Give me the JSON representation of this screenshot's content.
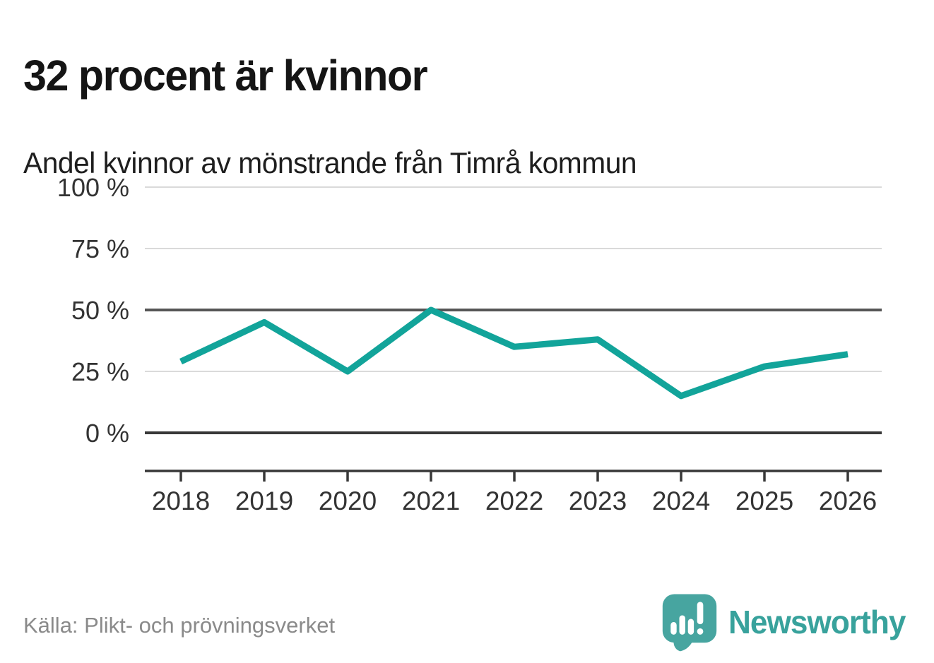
{
  "header": {
    "title": "32 procent är kvinnor",
    "subtitle": "Andel kvinnor av mönstrande från Timrå kommun"
  },
  "chart_data": {
    "type": "line",
    "title": "32 procent är kvinnor",
    "subtitle": "Andel kvinnor av mönstrande från Timrå kommun",
    "categories": [
      "2018",
      "2019",
      "2020",
      "2021",
      "2022",
      "2023",
      "2024",
      "2025",
      "2026"
    ],
    "series": [
      {
        "name": "Andel kvinnor av mönstrande",
        "unit": "%",
        "values": [
          29,
          45,
          25,
          50,
          35,
          38,
          15,
          27,
          32
        ]
      }
    ],
    "xlabel": "",
    "ylabel": "",
    "ylim": [
      0,
      100
    ],
    "yticks": [
      {
        "value": 100,
        "label": "100 %",
        "emphasis": "light"
      },
      {
        "value": 75,
        "label": "75 %",
        "emphasis": "light"
      },
      {
        "value": 50,
        "label": "50 %",
        "emphasis": "strong"
      },
      {
        "value": 25,
        "label": "25 %",
        "emphasis": "light"
      },
      {
        "value": 0,
        "label": "0 %",
        "emphasis": "zero"
      }
    ],
    "grid": "horizontal",
    "legend": "none",
    "line_color": "#12a49a"
  },
  "footer": {
    "source": "Källa: Plikt- och prövningsverket",
    "brand": "Newsworthy"
  },
  "colors": {
    "accent_teal": "#12a49a",
    "logo_teal": "#47a5a0",
    "wordmark_teal": "#38a29c",
    "grid_light": "#dadada",
    "grid_strong": "#565656",
    "axis": "#383838",
    "tick_label": "#333333",
    "text_dark": "#151515",
    "text_muted": "#8a8a8a"
  }
}
